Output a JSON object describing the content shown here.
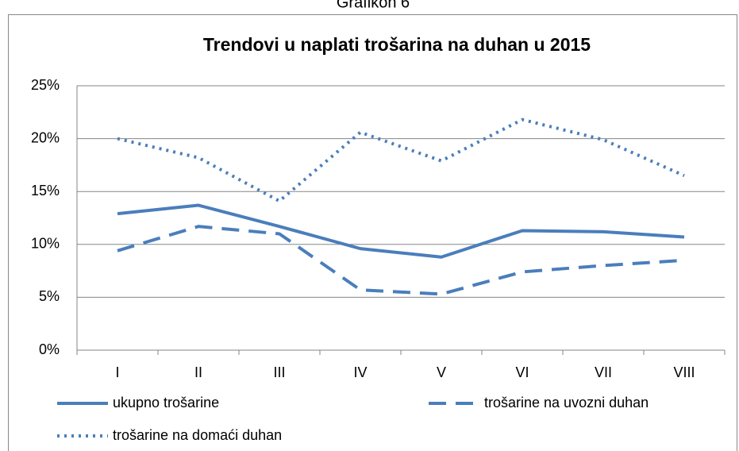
{
  "caption": "Grafikon 6",
  "chart_data": {
    "type": "line",
    "title": "Trendovi u naplati trošarina na duhan u 2015",
    "categories": [
      "I",
      "II",
      "III",
      "IV",
      "V",
      "VI",
      "VII",
      "VIII"
    ],
    "series": [
      {
        "name": "ukupno trošarine",
        "color": "#4a7ebb",
        "style": "solid",
        "values": [
          12.9,
          13.7,
          11.7,
          9.6,
          8.8,
          11.3,
          11.2,
          10.7
        ]
      },
      {
        "name": "trošarine na uvozni duhan",
        "color": "#4a7ebb",
        "style": "dash",
        "values": [
          9.4,
          11.7,
          11.0,
          5.7,
          5.3,
          7.4,
          8.0,
          8.5
        ]
      },
      {
        "name": "trošarine na domaći duhan",
        "color": "#4a7ebb",
        "style": "dot",
        "values": [
          20.0,
          18.2,
          14.1,
          20.6,
          17.9,
          21.8,
          19.9,
          16.5
        ]
      }
    ],
    "ylim": [
      0,
      25
    ],
    "yticks": [
      {
        "value": 0,
        "label": "0%"
      },
      {
        "value": 5,
        "label": "5%"
      },
      {
        "value": 10,
        "label": "10%"
      },
      {
        "value": 15,
        "label": "15%"
      },
      {
        "value": 20,
        "label": "20%"
      },
      {
        "value": 25,
        "label": "25%"
      }
    ],
    "grid": true,
    "legend": "bottom"
  }
}
